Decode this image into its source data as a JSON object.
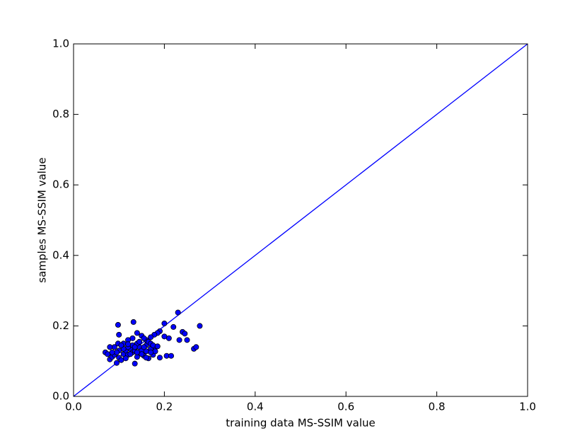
{
  "chart_data": {
    "type": "scatter",
    "x_label": "training data MS-SSIM value",
    "y_label": "samples MS-SSIM value",
    "xlim": [
      0,
      1
    ],
    "ylim": [
      0,
      1
    ],
    "xticks": [
      {
        "value": 0,
        "label": "0.0"
      },
      0.2,
      0.4,
      0.6,
      0.8,
      {
        "value": 1,
        "label": "1.0"
      }
    ],
    "yticks": [
      {
        "value": 0,
        "label": "0.0"
      },
      0.2,
      0.4,
      0.6,
      0.8,
      {
        "value": 1,
        "label": "1.0"
      }
    ],
    "points": {
      "color": "#0000ff",
      "x": [
        0.098,
        0.132,
        0.2,
        0.23,
        0.278,
        0.22,
        0.24,
        0.245,
        0.25,
        0.233,
        0.21,
        0.19,
        0.185,
        0.178,
        0.17,
        0.16,
        0.15,
        0.14,
        0.13,
        0.12,
        0.11,
        0.1,
        0.098,
        0.09,
        0.08,
        0.07,
        0.075,
        0.08,
        0.085,
        0.09,
        0.095,
        0.1,
        0.105,
        0.11,
        0.115,
        0.12,
        0.125,
        0.13,
        0.135,
        0.14,
        0.145,
        0.15,
        0.155,
        0.16,
        0.165,
        0.17,
        0.175,
        0.18,
        0.19,
        0.2,
        0.205,
        0.215,
        0.265,
        0.27,
        0.16,
        0.165,
        0.17,
        0.175,
        0.14,
        0.145,
        0.13,
        0.12,
        0.11,
        0.1,
        0.095,
        0.105,
        0.115,
        0.125,
        0.135,
        0.15,
        0.16,
        0.18,
        0.17,
        0.155,
        0.185,
        0.12,
        0.14,
        0.085,
        0.135,
        0.155
      ],
      "y": [
        0.203,
        0.211,
        0.207,
        0.238,
        0.2,
        0.197,
        0.183,
        0.178,
        0.16,
        0.16,
        0.165,
        0.185,
        0.18,
        0.175,
        0.168,
        0.16,
        0.172,
        0.18,
        0.165,
        0.16,
        0.15,
        0.175,
        0.15,
        0.14,
        0.14,
        0.125,
        0.12,
        0.105,
        0.112,
        0.118,
        0.095,
        0.11,
        0.103,
        0.12,
        0.13,
        0.118,
        0.135,
        0.125,
        0.093,
        0.112,
        0.14,
        0.13,
        0.115,
        0.128,
        0.108,
        0.135,
        0.118,
        0.14,
        0.11,
        0.17,
        0.115,
        0.115,
        0.135,
        0.14,
        0.145,
        0.155,
        0.15,
        0.145,
        0.15,
        0.155,
        0.145,
        0.14,
        0.135,
        0.13,
        0.125,
        0.145,
        0.108,
        0.12,
        0.13,
        0.12,
        0.11,
        0.128,
        0.125,
        0.14,
        0.142,
        0.148,
        0.125,
        0.125,
        0.14,
        0.165
      ]
    },
    "line": {
      "color": "#0000ff",
      "x": [
        0,
        1
      ],
      "y": [
        0,
        1
      ]
    }
  }
}
